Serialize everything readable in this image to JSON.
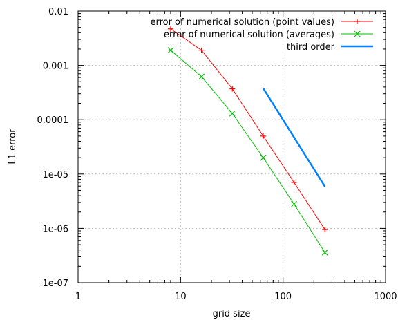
{
  "chart_data": {
    "type": "line",
    "xscale": "log",
    "yscale": "log",
    "xlim": [
      1,
      1000
    ],
    "ylim": [
      1e-07,
      0.01
    ],
    "xticks": [
      {
        "value": 1,
        "label": "1"
      },
      {
        "value": 10,
        "label": "10"
      },
      {
        "value": 100,
        "label": "100"
      },
      {
        "value": 1000,
        "label": "1000"
      }
    ],
    "yticks": [
      {
        "value": 0.01,
        "label": "0.01"
      },
      {
        "value": 0.001,
        "label": "0.001"
      },
      {
        "value": 0.0001,
        "label": "0.0001"
      },
      {
        "value": 1e-05,
        "label": "1e-05"
      },
      {
        "value": 1e-06,
        "label": "1e-06"
      },
      {
        "value": 1e-07,
        "label": "1e-07"
      }
    ],
    "xlabel": "grid size",
    "ylabel": "L1 error",
    "grid": true,
    "legend_position": "top-right",
    "series": [
      {
        "name": "error of numerical solution (point values)",
        "color": "#ff0000",
        "marker": "plus",
        "x": [
          8,
          16,
          32,
          64,
          128,
          256
        ],
        "y": [
          0.0047,
          0.0019,
          0.00037,
          5e-05,
          7e-06,
          9.5e-07
        ]
      },
      {
        "name": "error of numerical solution (averages)",
        "color": "#00c000",
        "marker": "cross",
        "x": [
          8,
          16,
          32,
          64,
          128,
          256
        ],
        "y": [
          0.0019,
          0.00062,
          0.00013,
          2e-05,
          2.8e-06,
          3.6e-07
        ]
      },
      {
        "name": "third order",
        "color": "#0080ff",
        "marker": "none",
        "x": [
          64,
          256
        ],
        "y": [
          0.00038,
          5.9e-06
        ]
      }
    ]
  }
}
